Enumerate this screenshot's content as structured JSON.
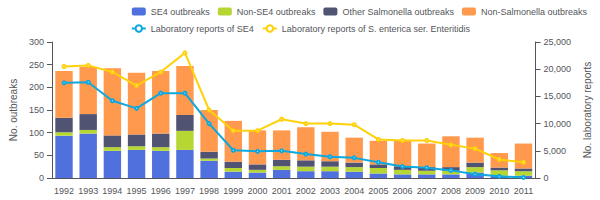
{
  "chart_data": {
    "type": "bar",
    "stacked": true,
    "grid": false,
    "legend": "upper right",
    "ylabel": "No. outbreaks",
    "y2label": "No. laboratory reports",
    "categories": [
      "1992",
      "1993",
      "1994",
      "1995",
      "1996",
      "1997",
      "1998",
      "1999",
      "2000",
      "2001",
      "2002",
      "2003",
      "2004",
      "2005",
      "2006",
      "2007",
      "2008",
      "2009",
      "2010",
      "2011"
    ],
    "ylim": [
      0,
      300
    ],
    "yticks": [
      0,
      50,
      100,
      150,
      200,
      250,
      300
    ],
    "y2lim": [
      0,
      25000
    ],
    "y2ticks": [
      0,
      {
        "value": 5000,
        "label": "5,000"
      },
      {
        "value": 10000,
        "label": "10,000"
      },
      {
        "value": 15000,
        "label": "15,000"
      },
      {
        "value": 20000,
        "label": "20,000"
      },
      {
        "value": 25000,
        "label": "25,000"
      }
    ],
    "series": [
      {
        "name": "SE4 outbreaks",
        "type": "bar",
        "values": [
          93,
          98,
          60,
          62,
          60,
          62,
          38,
          14,
          12,
          18,
          15,
          15,
          14,
          10,
          8,
          8,
          8,
          12,
          5,
          5
        ]
      },
      {
        "name": "Non-SE4 outbreaks",
        "type": "bar",
        "values": [
          8,
          8,
          8,
          8,
          8,
          42,
          5,
          8,
          6,
          8,
          10,
          10,
          10,
          12,
          10,
          8,
          8,
          12,
          12,
          10
        ]
      },
      {
        "name": "Other Salmonella outbreaks",
        "type": "bar",
        "values": [
          32,
          35,
          26,
          26,
          30,
          35,
          15,
          14,
          12,
          14,
          14,
          12,
          10,
          8,
          8,
          8,
          8,
          10,
          6,
          6
        ]
      },
      {
        "name": "Non-Salmonella outbreaks",
        "type": "bar",
        "values": [
          103,
          104,
          148,
          136,
          138,
          108,
          92,
          90,
          75,
          65,
          73,
          65,
          55,
          52,
          58,
          52,
          68,
          55,
          32,
          55
        ]
      },
      {
        "name": "Laboratory reports of SE4",
        "type": "line",
        "axis": "y2",
        "values": [
          17500,
          17600,
          14200,
          12800,
          15600,
          15600,
          10000,
          5100,
          4900,
          5000,
          4400,
          3900,
          3700,
          2900,
          2100,
          1900,
          1400,
          700,
          300,
          100
        ]
      },
      {
        "name": "Laboratory reports of S. enterica ser. Enteritidis",
        "type": "line",
        "axis": "y2",
        "values": [
          20500,
          20700,
          19500,
          17000,
          19500,
          23000,
          12500,
          8700,
          8700,
          10800,
          10000,
          10000,
          9800,
          7100,
          6900,
          6900,
          6100,
          5400,
          3400,
          2900
        ]
      }
    ]
  }
}
